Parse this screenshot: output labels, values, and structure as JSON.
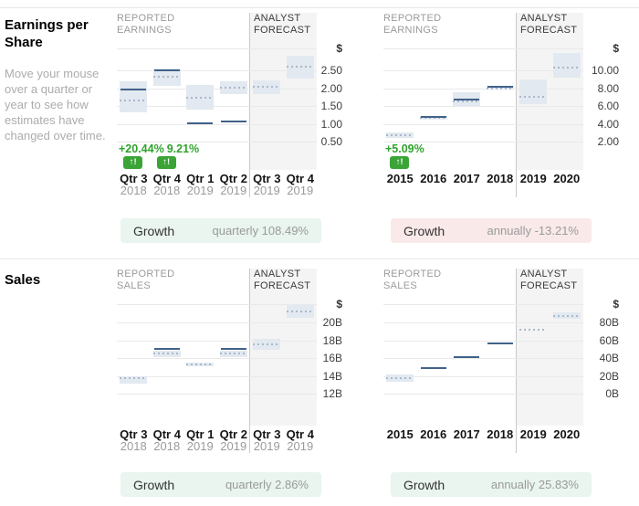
{
  "sections": [
    {
      "title": "Earnings per Share",
      "help": "Move your mouse over a quarter or year to see how estimates have changed over time."
    },
    {
      "title": "Sales",
      "help": ""
    }
  ],
  "icons": {
    "alert_up": "↑!"
  },
  "chart_data": [
    {
      "id": "eps-quarterly",
      "type": "scatter",
      "subtype": "estimate-range",
      "reported_label": "REPORTED EARNINGS",
      "forecast_label": "ANALYST FORECAST",
      "unit_label": "$",
      "y_tick_labels": [
        "2.50",
        "2.00",
        "1.50",
        "1.00",
        "0.50"
      ],
      "y_tick_values": [
        2.5,
        2.0,
        1.5,
        1.0,
        0.5
      ],
      "columns": [
        {
          "label": "Qtr 3",
          "sublabel": "2018",
          "forecast": false,
          "range": [
            1.31,
            2.19
          ],
          "estimate": 1.66,
          "reported": 1.95,
          "change": "+20.44%",
          "alert": true
        },
        {
          "label": "Qtr 4",
          "sublabel": "2018",
          "forecast": false,
          "range": [
            2.06,
            2.55
          ],
          "estimate": 2.32,
          "reported": 2.5,
          "change": "9.21%",
          "alert": true
        },
        {
          "label": "Qtr 1",
          "sublabel": "2019",
          "forecast": false,
          "range": [
            1.39,
            2.1
          ],
          "estimate": 1.74,
          "reported": 1.02,
          "change": null,
          "alert": false
        },
        {
          "label": "Qtr 2",
          "sublabel": "2019",
          "forecast": false,
          "range": [
            1.84,
            2.2
          ],
          "estimate": 2.02,
          "reported": 1.07,
          "change": null,
          "alert": false
        },
        {
          "label": "Qtr 3",
          "sublabel": "2019",
          "forecast": true,
          "range": [
            1.83,
            2.23
          ],
          "estimate": 2.04,
          "reported": null,
          "change": null,
          "alert": false
        },
        {
          "label": "Qtr 4",
          "sublabel": "2019",
          "forecast": true,
          "range": [
            2.27,
            2.9
          ],
          "estimate": 2.6,
          "reported": null,
          "change": null,
          "alert": false
        }
      ],
      "growth": {
        "label": "Growth",
        "text": "quarterly 108.49%",
        "tone": "positive"
      }
    },
    {
      "id": "eps-annual",
      "type": "scatter",
      "subtype": "estimate-range",
      "reported_label": "REPORTED EARNINGS",
      "forecast_label": "ANALYST FORECAST",
      "unit_label": "$",
      "y_tick_labels": [
        "10.00",
        "8.00",
        "6.00",
        "4.00",
        "2.00"
      ],
      "y_tick_values": [
        10,
        8,
        6,
        4,
        2
      ],
      "columns": [
        {
          "label": "2015",
          "sublabel": null,
          "forecast": false,
          "range": [
            2.4,
            3.0
          ],
          "estimate": 2.7,
          "reported": null,
          "change": "+5.09%",
          "alert": true
        },
        {
          "label": "2016",
          "sublabel": null,
          "forecast": false,
          "range": [
            4.5,
            4.9
          ],
          "estimate": 4.65,
          "reported": 4.72,
          "change": null,
          "alert": false
        },
        {
          "label": "2017",
          "sublabel": null,
          "forecast": false,
          "range": [
            6.0,
            7.5
          ],
          "estimate": 6.55,
          "reported": 6.7,
          "change": null,
          "alert": false
        },
        {
          "label": "2018",
          "sublabel": null,
          "forecast": false,
          "range": [
            7.85,
            8.3
          ],
          "estimate": 8.0,
          "reported": 8.13,
          "change": null,
          "alert": false
        },
        {
          "label": "2019",
          "sublabel": null,
          "forecast": true,
          "range": [
            6.2,
            9.0
          ],
          "estimate": 7.0,
          "reported": null,
          "change": null,
          "alert": false
        },
        {
          "label": "2020",
          "sublabel": null,
          "forecast": true,
          "range": [
            9.2,
            11.9
          ],
          "estimate": 10.3,
          "reported": null,
          "change": null,
          "alert": false
        }
      ],
      "growth": {
        "label": "Growth",
        "text": "annually -13.21%",
        "tone": "negative"
      }
    },
    {
      "id": "sales-quarterly",
      "type": "scatter",
      "subtype": "estimate-range",
      "reported_label": "REPORTED SALES",
      "forecast_label": "ANALYST FORECAST",
      "unit_label": "$",
      "y_tick_labels": [
        "20B",
        "18B",
        "16B",
        "14B",
        "12B"
      ],
      "y_tick_values": [
        20,
        18,
        16,
        14,
        12
      ],
      "columns": [
        {
          "label": "Qtr 3",
          "sublabel": "2018",
          "forecast": false,
          "range": [
            13.15,
            14.0
          ],
          "estimate": 13.7,
          "reported": null,
          "change": null,
          "alert": false
        },
        {
          "label": "Qtr 4",
          "sublabel": "2018",
          "forecast": false,
          "range": [
            16.1,
            16.8
          ],
          "estimate": 16.5,
          "reported": 17.05,
          "change": null,
          "alert": false
        },
        {
          "label": "Qtr 1",
          "sublabel": "2019",
          "forecast": false,
          "range": [
            15.05,
            15.45
          ],
          "estimate": 15.25,
          "reported": null,
          "change": null,
          "alert": false
        },
        {
          "label": "Qtr 2",
          "sublabel": "2019",
          "forecast": false,
          "range": [
            16.1,
            16.8
          ],
          "estimate": 16.5,
          "reported": 17.0,
          "change": null,
          "alert": false
        },
        {
          "label": "Qtr 3",
          "sublabel": "2019",
          "forecast": true,
          "range": [
            16.9,
            18.2
          ],
          "estimate": 17.5,
          "reported": null,
          "change": null,
          "alert": false
        },
        {
          "label": "Qtr 4",
          "sublabel": "2019",
          "forecast": true,
          "range": [
            20.5,
            22.0
          ],
          "estimate": 21.2,
          "reported": null,
          "change": null,
          "alert": false
        }
      ],
      "growth": {
        "label": "Growth",
        "text": "quarterly 2.86%",
        "tone": "positive"
      }
    },
    {
      "id": "sales-annual",
      "type": "scatter",
      "subtype": "estimate-range",
      "reported_label": "REPORTED SALES",
      "forecast_label": "ANALYST FORECAST",
      "unit_label": "$",
      "y_tick_labels": [
        "80B",
        "60B",
        "40B",
        "20B",
        "0B"
      ],
      "y_tick_values": [
        80,
        60,
        40,
        20,
        0
      ],
      "columns": [
        {
          "label": "2015",
          "sublabel": null,
          "forecast": false,
          "range": [
            13.5,
            21.5
          ],
          "estimate": 17.0,
          "reported": null,
          "change": null,
          "alert": false
        },
        {
          "label": "2016",
          "sublabel": null,
          "forecast": false,
          "range": null,
          "estimate": null,
          "reported": 29.0,
          "change": null,
          "alert": false
        },
        {
          "label": "2017",
          "sublabel": null,
          "forecast": false,
          "range": null,
          "estimate": null,
          "reported": 41.0,
          "change": null,
          "alert": false
        },
        {
          "label": "2018",
          "sublabel": null,
          "forecast": false,
          "range": null,
          "estimate": null,
          "reported": 56.5,
          "change": null,
          "alert": false
        },
        {
          "label": "2019",
          "sublabel": null,
          "forecast": true,
          "range": null,
          "estimate": 71.5,
          "reported": null,
          "change": null,
          "alert": false
        },
        {
          "label": "2020",
          "sublabel": null,
          "forecast": true,
          "range": [
            84.0,
            91.5
          ],
          "estimate": 87.5,
          "reported": null,
          "change": null,
          "alert": false
        }
      ],
      "growth": {
        "label": "Growth",
        "text": "annually 25.83%",
        "tone": "positive"
      }
    }
  ]
}
